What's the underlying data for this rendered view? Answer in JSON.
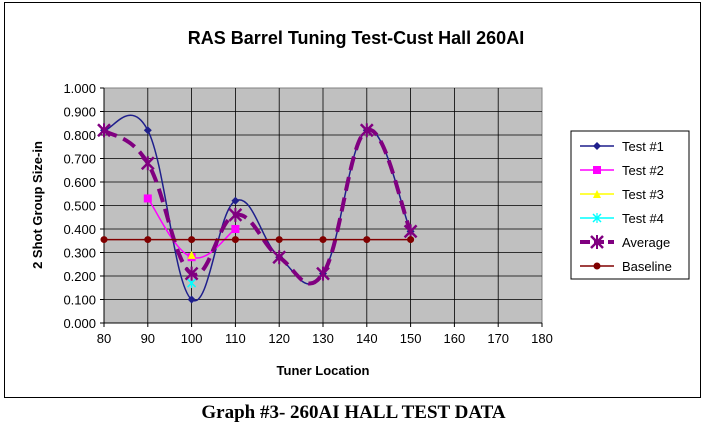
{
  "chart_data": {
    "type": "line",
    "title": "RAS Barrel Tuning Test-Cust Hall 260AI",
    "xlabel": "Tuner Location",
    "ylabel": "2 Shot Group Size-in",
    "xlim": [
      80,
      180
    ],
    "ylim": [
      0,
      1.0
    ],
    "x_ticks": [
      "80",
      "90",
      "100",
      "110",
      "120",
      "130",
      "140",
      "150",
      "160",
      "170",
      "180"
    ],
    "y_ticks": [
      "0.000",
      "0.100",
      "0.200",
      "0.300",
      "0.400",
      "0.500",
      "0.600",
      "0.700",
      "0.800",
      "0.900",
      "1.000"
    ],
    "grid": true,
    "legend_position": "right",
    "series": [
      {
        "name": "Test #1",
        "color": "#1f1f8c",
        "marker": "diamond",
        "smooth": true,
        "style": "solid",
        "x": [
          80,
          90,
          100,
          110,
          120,
          130,
          140,
          150
        ],
        "y": [
          0.82,
          0.82,
          0.1,
          0.52,
          0.28,
          0.21,
          0.82,
          0.39
        ]
      },
      {
        "name": "Test #2",
        "color": "#ff00ff",
        "marker": "square",
        "smooth": true,
        "style": "solid",
        "x": [
          90,
          100,
          110
        ],
        "y": [
          0.53,
          0.28,
          0.4
        ]
      },
      {
        "name": "Test #3",
        "color": "#ffff00",
        "marker": "triangle",
        "smooth": true,
        "style": "solid",
        "x": [
          100
        ],
        "y": [
          0.29
        ]
      },
      {
        "name": "Test #4",
        "color": "#00ffff",
        "marker": "x",
        "smooth": true,
        "style": "solid",
        "x": [
          100
        ],
        "y": [
          0.17
        ]
      },
      {
        "name": "Average",
        "color": "#800080",
        "marker": "x",
        "smooth": true,
        "style": "dashed",
        "x": [
          80,
          90,
          100,
          110,
          120,
          130,
          140,
          150
        ],
        "y": [
          0.82,
          0.68,
          0.21,
          0.46,
          0.28,
          0.21,
          0.82,
          0.39
        ]
      },
      {
        "name": "Baseline",
        "color": "#800000",
        "marker": "circle",
        "smooth": false,
        "style": "solid",
        "x": [
          80,
          90,
          100,
          110,
          120,
          130,
          140,
          150
        ],
        "y": [
          0.355,
          0.355,
          0.355,
          0.355,
          0.355,
          0.355,
          0.355,
          0.355
        ]
      }
    ]
  },
  "caption": "Graph #3- 260AI HALL TEST DATA"
}
